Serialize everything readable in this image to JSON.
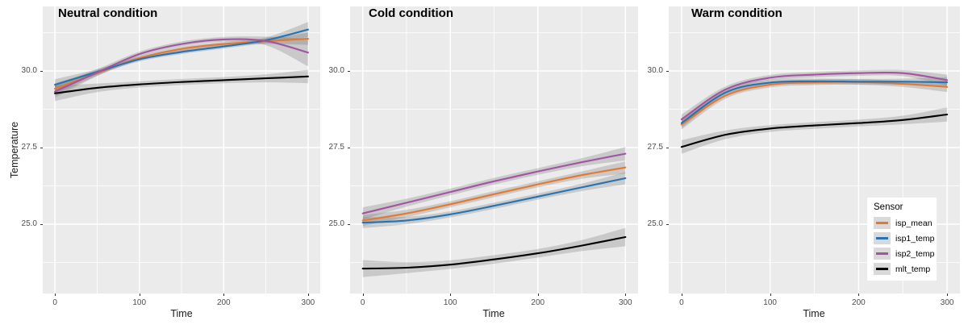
{
  "chart_data": {
    "type": "line",
    "xlabel": "Time",
    "ylabel": "Temperature",
    "x_range": [
      0,
      300
    ],
    "ylim": [
      22.8,
      32.1
    ],
    "grid": true,
    "x_ticks": [
      0,
      100,
      200,
      300
    ],
    "x_minor": [
      50,
      150,
      250
    ],
    "y_ticks": [
      30.0,
      27.5,
      25.0
    ],
    "y_tick_labels": [
      "30.0",
      "27.5",
      "25.0"
    ],
    "y_minor": [
      31.25,
      28.75,
      26.25,
      23.75
    ],
    "time_points": [
      0,
      50,
      100,
      150,
      200,
      250,
      300
    ],
    "panel_bg": "#EBEBEB",
    "grid_color": "#FFFFFF",
    "band_color": "rgba(110,110,110,0.27)",
    "legend": {
      "title": "Sensor",
      "position": "inside-bottom-right-of-warm-panel",
      "entries": [
        {
          "name": "isp_mean",
          "color": "#E8772E"
        },
        {
          "name": "isp1_temp",
          "color": "#2473B5"
        },
        {
          "name": "isp2_temp",
          "color": "#A254A2"
        },
        {
          "name": "mlt_temp",
          "color": "#000000"
        }
      ]
    },
    "facets": [
      {
        "title": "Neutral condition",
        "series": [
          {
            "name": "isp_mean",
            "values": [
              29.42,
              29.93,
              30.42,
              30.72,
              30.88,
              30.97,
              31.05
            ],
            "ci": [
              0.18,
              0.09,
              0.07,
              0.07,
              0.07,
              0.09,
              0.2
            ]
          },
          {
            "name": "isp1_temp",
            "values": [
              29.55,
              29.97,
              30.38,
              30.62,
              30.8,
              31.0,
              31.35
            ],
            "ci": [
              0.18,
              0.09,
              0.07,
              0.07,
              0.07,
              0.09,
              0.25
            ]
          },
          {
            "name": "isp2_temp",
            "values": [
              29.33,
              29.95,
              30.55,
              30.88,
              31.03,
              30.98,
              30.6
            ],
            "ci": [
              0.2,
              0.11,
              0.08,
              0.08,
              0.08,
              0.14,
              0.45
            ]
          },
          {
            "name": "mlt_temp",
            "values": [
              29.27,
              29.45,
              29.56,
              29.64,
              29.7,
              29.76,
              29.82
            ],
            "ci": [
              0.25,
              0.14,
              0.1,
              0.1,
              0.1,
              0.13,
              0.22
            ]
          }
        ]
      },
      {
        "title": "Cold condition",
        "series": [
          {
            "name": "isp_mean",
            "values": [
              25.12,
              25.35,
              25.65,
              25.98,
              26.3,
              26.6,
              26.85
            ],
            "ci": [
              0.18,
              0.12,
              0.1,
              0.1,
              0.1,
              0.12,
              0.2
            ]
          },
          {
            "name": "isp1_temp",
            "values": [
              25.05,
              25.12,
              25.32,
              25.6,
              25.9,
              26.2,
              26.5
            ],
            "ci": [
              0.18,
              0.12,
              0.1,
              0.1,
              0.1,
              0.12,
              0.2
            ]
          },
          {
            "name": "isp2_temp",
            "values": [
              25.35,
              25.7,
              26.05,
              26.4,
              26.72,
              27.02,
              27.3
            ],
            "ci": [
              0.2,
              0.13,
              0.11,
              0.11,
              0.11,
              0.13,
              0.22
            ]
          },
          {
            "name": "mlt_temp",
            "values": [
              23.55,
              23.58,
              23.68,
              23.85,
              24.05,
              24.3,
              24.58
            ],
            "ci": [
              0.28,
              0.18,
              0.14,
              0.14,
              0.14,
              0.18,
              0.3
            ]
          }
        ]
      },
      {
        "title": "Warm condition",
        "series": [
          {
            "name": "isp_mean",
            "values": [
              28.25,
              29.2,
              29.55,
              29.63,
              29.64,
              29.58,
              29.48
            ],
            "ci": [
              0.16,
              0.1,
              0.09,
              0.09,
              0.09,
              0.1,
              0.17
            ]
          },
          {
            "name": "isp1_temp",
            "values": [
              28.3,
              29.3,
              29.62,
              29.66,
              29.65,
              29.65,
              29.63
            ],
            "ci": [
              0.16,
              0.1,
              0.09,
              0.09,
              0.09,
              0.1,
              0.17
            ]
          },
          {
            "name": "isp2_temp",
            "values": [
              28.42,
              29.4,
              29.78,
              29.88,
              29.93,
              29.93,
              29.7
            ],
            "ci": [
              0.16,
              0.1,
              0.09,
              0.09,
              0.09,
              0.1,
              0.18
            ]
          },
          {
            "name": "mlt_temp",
            "values": [
              27.52,
              27.92,
              28.12,
              28.22,
              28.3,
              28.4,
              28.58
            ],
            "ci": [
              0.22,
              0.14,
              0.11,
              0.11,
              0.11,
              0.14,
              0.23
            ]
          }
        ]
      }
    ]
  }
}
